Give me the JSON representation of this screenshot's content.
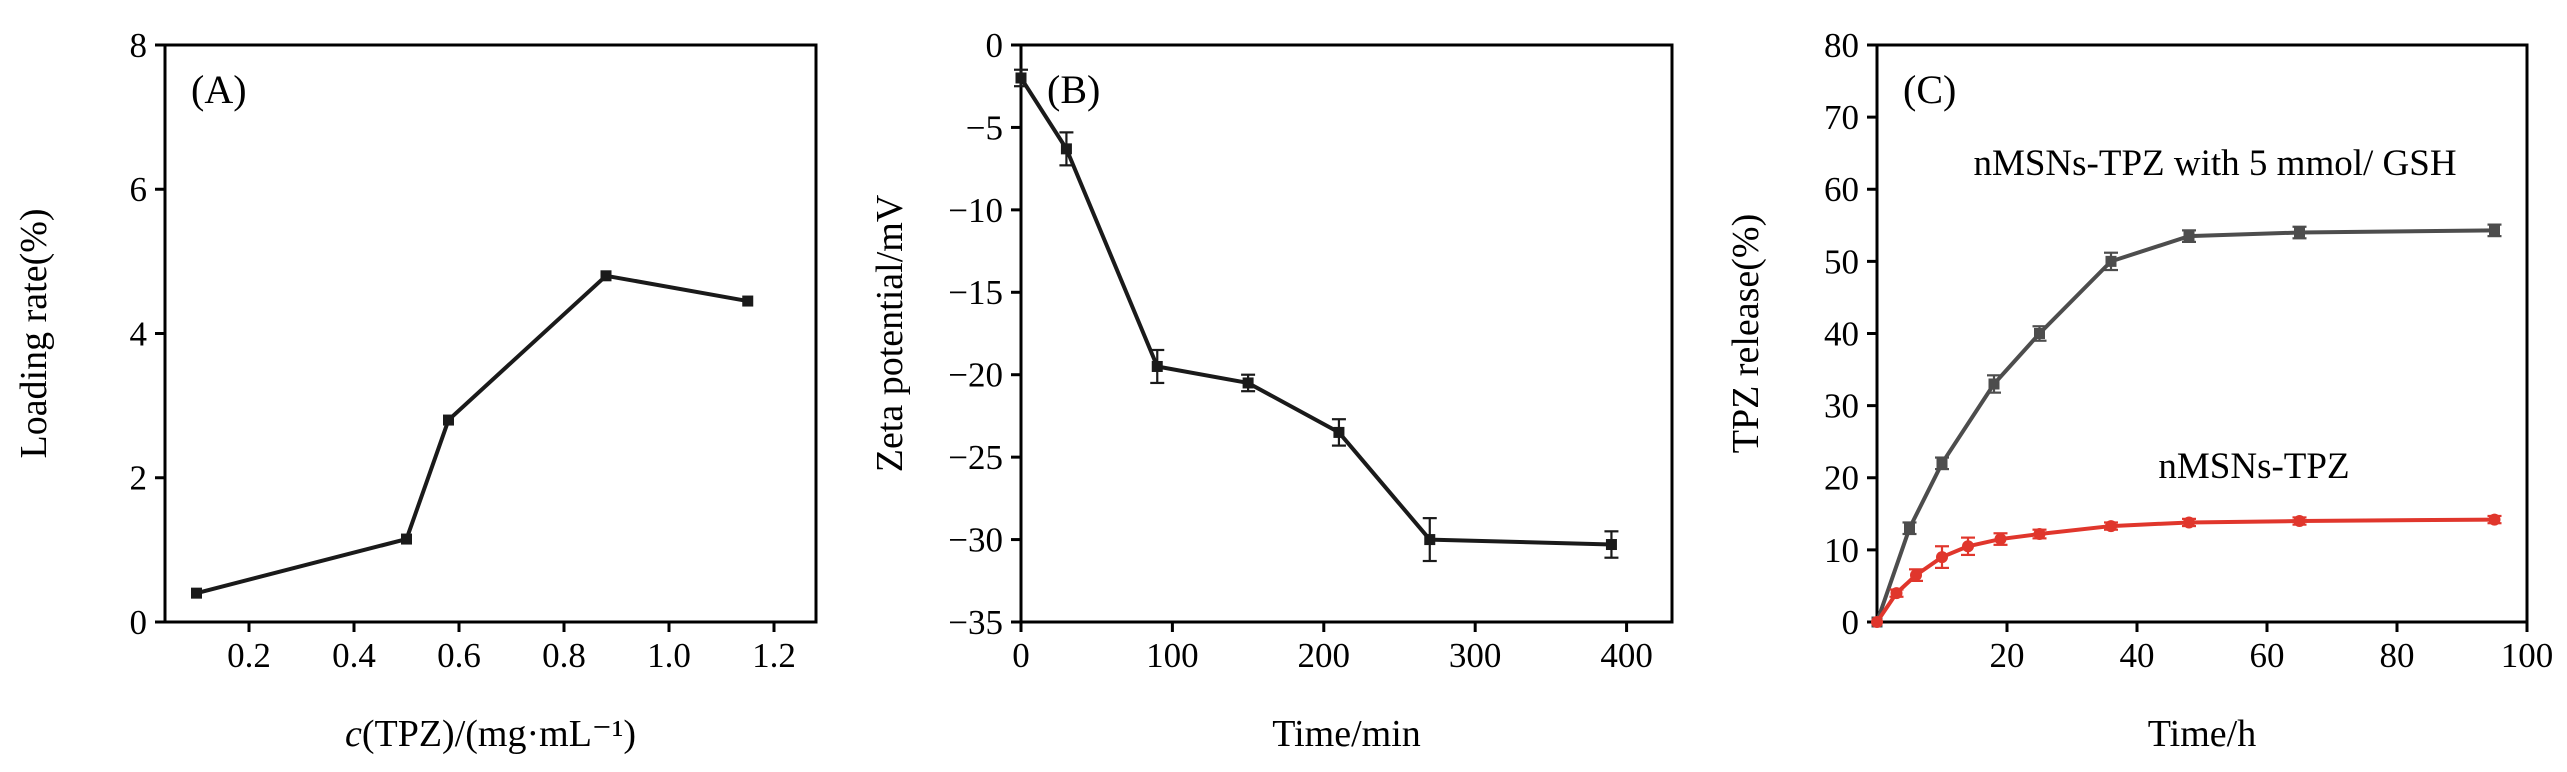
{
  "figure": {
    "background": "#ffffff",
    "frame_color": "#000000"
  },
  "chart_data": [
    {
      "panel_label": "(A)",
      "type": "line",
      "xlabel_parts": [
        {
          "t": "c",
          "i": true
        },
        {
          "t": "(TPZ)/(mg·mL⁻¹)"
        }
      ],
      "ylabel": "Loading rate(%)",
      "xlim": [
        0.04,
        1.28
      ],
      "ylim": [
        0,
        8
      ],
      "xticks": [
        0.2,
        0.4,
        0.6,
        0.8,
        1.0,
        1.2
      ],
      "xtick_labels": [
        "0.2",
        "0.4",
        "0.6",
        "0.8",
        "1.0",
        "1.2"
      ],
      "yticks": [
        0,
        2,
        4,
        6,
        8
      ],
      "ytick_labels": [
        "0",
        "2",
        "4",
        "6",
        "8"
      ],
      "grid": false,
      "series": [
        {
          "name": "Loading rate",
          "color": "#1a1a1a",
          "marker": "square",
          "x": [
            0.1,
            0.5,
            0.58,
            0.88,
            1.15
          ],
          "y": [
            0.4,
            1.15,
            2.8,
            4.8,
            4.45
          ]
        }
      ],
      "annotations": []
    },
    {
      "panel_label": "(B)",
      "type": "line",
      "xlabel_parts": [
        {
          "t": "Time/min"
        }
      ],
      "ylabel": "Zeta potential/mV",
      "xlim": [
        0,
        430
      ],
      "ylim": [
        -35,
        0
      ],
      "xticks": [
        0,
        100,
        200,
        300,
        400
      ],
      "xtick_labels": [
        "0",
        "100",
        "200",
        "300",
        "400"
      ],
      "yticks": [
        0,
        -5,
        -10,
        -15,
        -20,
        -25,
        -30,
        -35
      ],
      "ytick_labels": [
        "0",
        "−5",
        "−10",
        "−15",
        "−20",
        "−25",
        "−30",
        "−35"
      ],
      "grid": false,
      "series": [
        {
          "name": "Zeta potential",
          "color": "#1a1a1a",
          "marker": "square",
          "x": [
            0,
            30,
            90,
            150,
            210,
            270,
            390
          ],
          "y": [
            -2,
            -6.3,
            -19.5,
            -20.5,
            -23.5,
            -30,
            -30.3
          ],
          "yerr": [
            0.5,
            1.0,
            1.0,
            0.5,
            0.8,
            1.3,
            0.8
          ]
        }
      ],
      "annotations": []
    },
    {
      "panel_label": "(C)",
      "type": "line",
      "xlabel_parts": [
        {
          "t": "Time/h"
        }
      ],
      "ylabel": "TPZ release(%)",
      "xlim": [
        0,
        100
      ],
      "ylim": [
        0,
        80
      ],
      "xticks": [
        20,
        40,
        60,
        80,
        100
      ],
      "xtick_labels": [
        "20",
        "40",
        "60",
        "80",
        "100"
      ],
      "yticks": [
        0,
        10,
        20,
        30,
        40,
        50,
        60,
        70,
        80
      ],
      "ytick_labels": [
        "0",
        "10",
        "20",
        "30",
        "40",
        "50",
        "60",
        "70",
        "80"
      ],
      "grid": false,
      "series": [
        {
          "name": "nMSNs-TPZ with 5 mmol/ GSH",
          "color": "#4d4d4d",
          "marker": "square",
          "x": [
            0,
            5,
            10,
            18,
            25,
            36,
            48,
            65,
            95
          ],
          "y": [
            0,
            13,
            22,
            33,
            40,
            50,
            53.5,
            54,
            54.3
          ],
          "yerr": [
            0,
            0.8,
            0.8,
            1.2,
            1.0,
            1.2,
            0.8,
            0.8,
            0.8
          ]
        },
        {
          "name": "nMSNs-TPZ",
          "color": "#e0362c",
          "marker": "circle",
          "x": [
            0,
            3,
            6,
            10,
            14,
            19,
            25,
            36,
            48,
            65,
            95
          ],
          "y": [
            0,
            4,
            6.5,
            9,
            10.5,
            11.5,
            12.2,
            13.3,
            13.8,
            14,
            14.2
          ],
          "yerr": [
            0,
            0.5,
            0.8,
            1.5,
            1.2,
            0.8,
            0.6,
            0.5,
            0.5,
            0.5,
            0.5
          ]
        }
      ],
      "annotations": [
        {
          "text": "nMSNs-TPZ with 5 mmol/ GSH",
          "x": 52,
          "y": 62
        },
        {
          "text": "nMSNs-TPZ",
          "x": 58,
          "y": 20
        }
      ]
    }
  ]
}
